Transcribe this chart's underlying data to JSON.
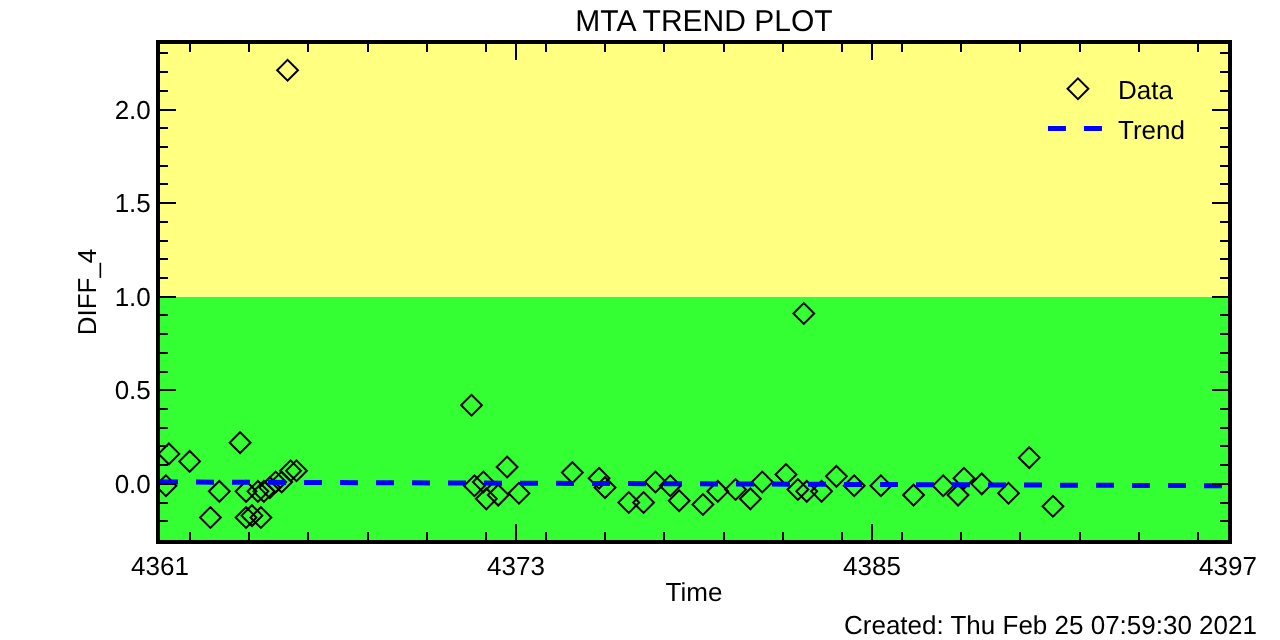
{
  "chart_data": {
    "type": "scatter",
    "title": "MTA TREND PLOT",
    "xlabel": "Time",
    "ylabel": "DIFF_4",
    "annotations": [
      "Created: Thu Feb 25 07:59:30 2021"
    ],
    "series": [
      {
        "name": "Data",
        "color": "#000000",
        "marker": "diamond",
        "x": [
          4361.2,
          4361.3,
          4362.0,
          4362.7,
          4363.0,
          4363.7,
          4363.9,
          4363.9,
          4364.1,
          4364.3,
          4364.4,
          4364.5,
          4364.7,
          4364.9,
          4365.1,
          4365.3,
          4365.4,
          4365.6,
          4371.5,
          4371.6,
          4371.9,
          4372.0,
          4372.4,
          4372.7,
          4373.1,
          4374.9,
          4375.8,
          4376.0,
          4376.8,
          4377.3,
          4377.7,
          4378.2,
          4378.5,
          4379.3,
          4379.8,
          4380.4,
          4380.9,
          4381.3,
          4382.1,
          4382.5,
          4382.7,
          4382.8,
          4383.3,
          4383.8,
          4384.4,
          4385.3,
          4386.4,
          4387.4,
          4387.9,
          4388.1,
          4388.7,
          4389.6,
          4390.3,
          4391.1
        ],
        "values": [
          -0.01,
          0.16,
          0.12,
          -0.18,
          -0.04,
          0.22,
          -0.18,
          -0.04,
          -0.17,
          -0.04,
          -0.18,
          -0.04,
          -0.02,
          0.01,
          0.01,
          2.21,
          0.07,
          0.07,
          0.42,
          -0.01,
          0.01,
          -0.08,
          -0.06,
          0.09,
          -0.05,
          0.06,
          0.03,
          -0.02,
          -0.1,
          -0.1,
          0.01,
          -0.01,
          -0.09,
          -0.11,
          -0.04,
          -0.03,
          -0.08,
          0.01,
          0.05,
          -0.03,
          0.91,
          -0.04,
          -0.04,
          0.04,
          -0.01,
          -0.01,
          -0.06,
          -0.01,
          -0.06,
          0.03,
          0.0,
          -0.05,
          0.14,
          -0.12
        ]
      },
      {
        "name": "Trend",
        "type": "line",
        "color": "#0000ff",
        "line_style": "dashed",
        "x": [
          4361,
          4397
        ],
        "values": [
          0.01,
          -0.01
        ]
      }
    ],
    "bands": [
      {
        "axis": "y",
        "from": -0.3,
        "to": 1.0,
        "color": "#33ff33"
      },
      {
        "axis": "y",
        "from": 1.0,
        "to": 2.35,
        "color": "#ffff80"
      }
    ],
    "xlim": [
      4361,
      4397
    ],
    "xticks": [
      4361,
      4373,
      4385,
      4397
    ],
    "ylim": [
      -0.3,
      2.35
    ],
    "yticks": [
      {
        "value": 0,
        "label": "0.0"
      },
      {
        "value": 0.5,
        "label": "0.5"
      },
      {
        "value": 1,
        "label": "1.0"
      },
      {
        "value": 1.5,
        "label": "1.5"
      },
      {
        "value": 2,
        "label": "2.0"
      }
    ],
    "grid": false,
    "legend": "top right"
  }
}
